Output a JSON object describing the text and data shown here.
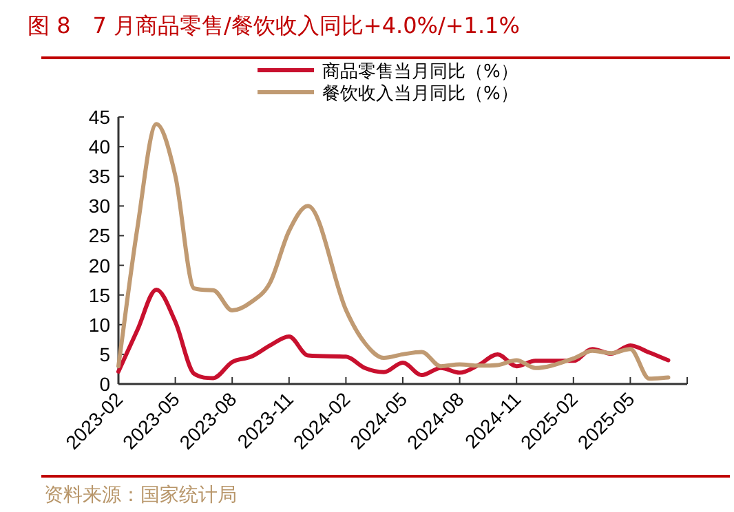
{
  "chart_data": {
    "type": "line",
    "title": "图 8　7 月商品零售/餐饮收入同比+4.0%/+1.1%",
    "x": [
      "2023-02",
      "2023-03",
      "2023-04",
      "2023-05",
      "2023-06",
      "2023-07",
      "2023-08",
      "2023-09",
      "2023-10",
      "2023-11",
      "2023-12",
      "2024-02",
      "2024-03",
      "2024-04",
      "2024-05",
      "2024-06",
      "2024-07",
      "2024-08",
      "2024-09",
      "2024-10",
      "2024-11",
      "2024-12",
      "2025-02",
      "2025-03",
      "2025-04",
      "2025-05",
      "2025-06",
      "2025-07"
    ],
    "series": [
      {
        "name": "商品零售当月同比（%）",
        "color": "#c8102e",
        "values": [
          2.1,
          9.1,
          15.9,
          10.5,
          1.7,
          1.0,
          3.7,
          4.6,
          6.5,
          8.0,
          4.8,
          4.6,
          2.7,
          2.0,
          3.6,
          1.5,
          2.7,
          1.9,
          3.2,
          5.0,
          3.0,
          3.9,
          3.9,
          5.9,
          5.1,
          6.5,
          5.3,
          4.0
        ]
      },
      {
        "name": "餐饮收入当月同比（%）",
        "color": "#c09a72",
        "values": [
          3.0,
          26.3,
          43.8,
          35.1,
          16.1,
          15.8,
          12.4,
          13.8,
          17.1,
          25.8,
          30.0,
          12.5,
          6.9,
          4.4,
          5.0,
          5.4,
          3.0,
          3.3,
          3.1,
          3.2,
          4.0,
          2.7,
          4.3,
          5.6,
          5.2,
          5.9,
          0.9,
          1.1
        ]
      }
    ],
    "xlim": [
      "2023-02",
      "2025-08"
    ],
    "xticks": [
      "2023-02",
      "2023-05",
      "2023-08",
      "2023-11",
      "2024-02",
      "2024-05",
      "2024-08",
      "2024-11",
      "2025-02",
      "2025-05"
    ],
    "ylim": [
      0,
      45
    ],
    "yticks": [
      0,
      5,
      10,
      15,
      20,
      25,
      30,
      35,
      40,
      45
    ],
    "legend": "top",
    "grid": false,
    "annotations": [
      "资料来源：国家统计局"
    ]
  }
}
